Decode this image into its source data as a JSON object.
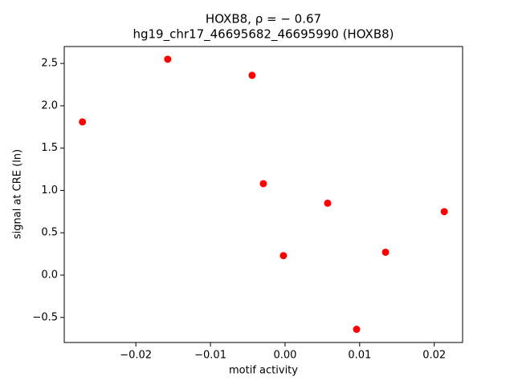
{
  "chart_data": {
    "type": "scatter",
    "title": "HOXB8, ρ = − 0.67",
    "subtitle": "hg19_chr17_46695682_46695990 (HOXB8)",
    "x_label": "motif activity",
    "y_label": "signal at CRE (ln)",
    "series": [
      {
        "color": "#ff0000",
        "x": [
          -0.02716,
          -0.01573,
          -0.00442,
          -0.00291,
          -0.00022,
          0.00571,
          0.00959,
          0.01347,
          0.02134
        ],
        "values": [
          1.81,
          2.55,
          2.36,
          1.08,
          0.23,
          0.85,
          -0.64,
          0.27,
          0.75
        ]
      }
    ],
    "xlim": [
      -0.0296,
      0.0238
    ],
    "ylim": [
      -0.796,
      2.7
    ],
    "xticks": [
      {
        "value": -0.02,
        "label": "−0.02"
      },
      {
        "value": -0.01,
        "label": "−0.01"
      },
      {
        "value": 0,
        "label": "0.00"
      },
      0.01,
      0.02
    ],
    "yticks": [
      {
        "value": -0.5,
        "label": "−0.5"
      },
      {
        "value": 0,
        "label": "0.0"
      },
      0.5,
      {
        "value": 1,
        "label": "1.0"
      },
      1.5,
      {
        "value": 2,
        "label": "2.0"
      },
      2.5
    ],
    "grid": false
  }
}
